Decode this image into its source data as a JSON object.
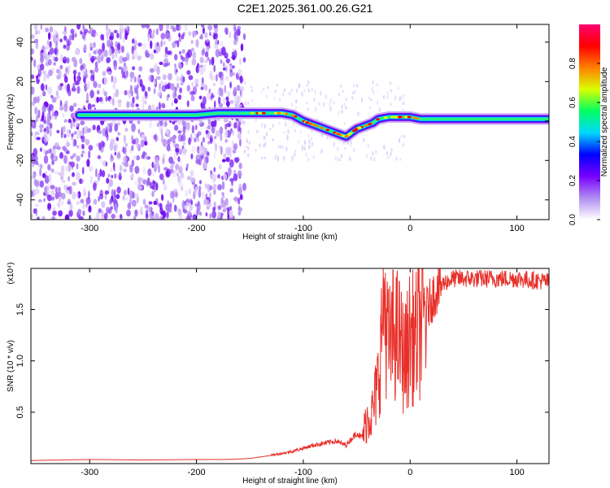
{
  "title": "C2E1.2025.361.00.26.G21",
  "chart_data": [
    {
      "type": "heatmap",
      "xlabel": "Height of straight line (km)",
      "ylabel": "Frequency (Hz)",
      "xlim": [
        -355,
        130
      ],
      "ylim": [
        -50,
        49
      ],
      "xticks": [
        -300,
        -200,
        -100,
        0,
        100
      ],
      "yticks": [
        -40,
        -20,
        0,
        20,
        40
      ],
      "colorbar": {
        "label": "Normalized spectral amplitude",
        "range": [
          0,
          1
        ],
        "ticks": [
          0.0,
          0.2,
          0.4,
          0.6,
          0.8
        ],
        "colors": [
          "#ffffff",
          "#b08cf0",
          "#7800ff",
          "#0000ff",
          "#00d8ff",
          "#00ff60",
          "#d8ff00",
          "#ff8000",
          "#ff0000",
          "#ff0070"
        ]
      },
      "ridge": {
        "x": [
          -310,
          -280,
          -250,
          -220,
          -200,
          -180,
          -160,
          -140,
          -120,
          -110,
          -100,
          -90,
          -80,
          -70,
          -60,
          -55,
          -50,
          -45,
          -40,
          -35,
          -30,
          -20,
          -10,
          0,
          10,
          40,
          80,
          130
        ],
        "y": [
          3,
          3,
          3,
          3,
          3,
          4,
          4,
          4,
          4,
          3,
          0,
          -2,
          -4,
          -6,
          -8,
          -6,
          -4,
          -3,
          -2,
          -1,
          1,
          2,
          2,
          2,
          1,
          1,
          1,
          1
        ]
      }
    },
    {
      "type": "line",
      "xlabel": "Height of straight line (km)",
      "ylabel": "SNR (10 * v/v)",
      "y_multiplier": "(x10⁴)",
      "xlim": [
        -355,
        130
      ],
      "ylim": [
        0,
        1.9
      ],
      "xticks": [
        -300,
        -200,
        -100,
        0,
        100
      ],
      "yticks": [
        0.5,
        1.0,
        1.5
      ],
      "color": "#e8302a",
      "series": [
        {
          "x": [
            -355,
            -300,
            -250,
            -200,
            -170,
            -150,
            -130,
            -110,
            -100,
            -90,
            -80,
            -70,
            -60,
            -50,
            -45,
            -40,
            -35,
            -30,
            -27,
            -25,
            -20,
            -15,
            -10,
            -5,
            0,
            5,
            10,
            15,
            20,
            25,
            30,
            40,
            60,
            80,
            100,
            130
          ],
          "y": [
            0.03,
            0.04,
            0.035,
            0.04,
            0.04,
            0.05,
            0.08,
            0.12,
            0.15,
            0.18,
            0.2,
            0.22,
            0.18,
            0.3,
            0.25,
            0.45,
            0.5,
            0.8,
            1.2,
            1.7,
            1.1,
            1.3,
            1.2,
            1.0,
            1.25,
            1.2,
            1.35,
            1.5,
            1.6,
            1.7,
            1.75,
            1.8,
            1.8,
            1.8,
            1.8,
            1.77
          ]
        }
      ]
    }
  ]
}
